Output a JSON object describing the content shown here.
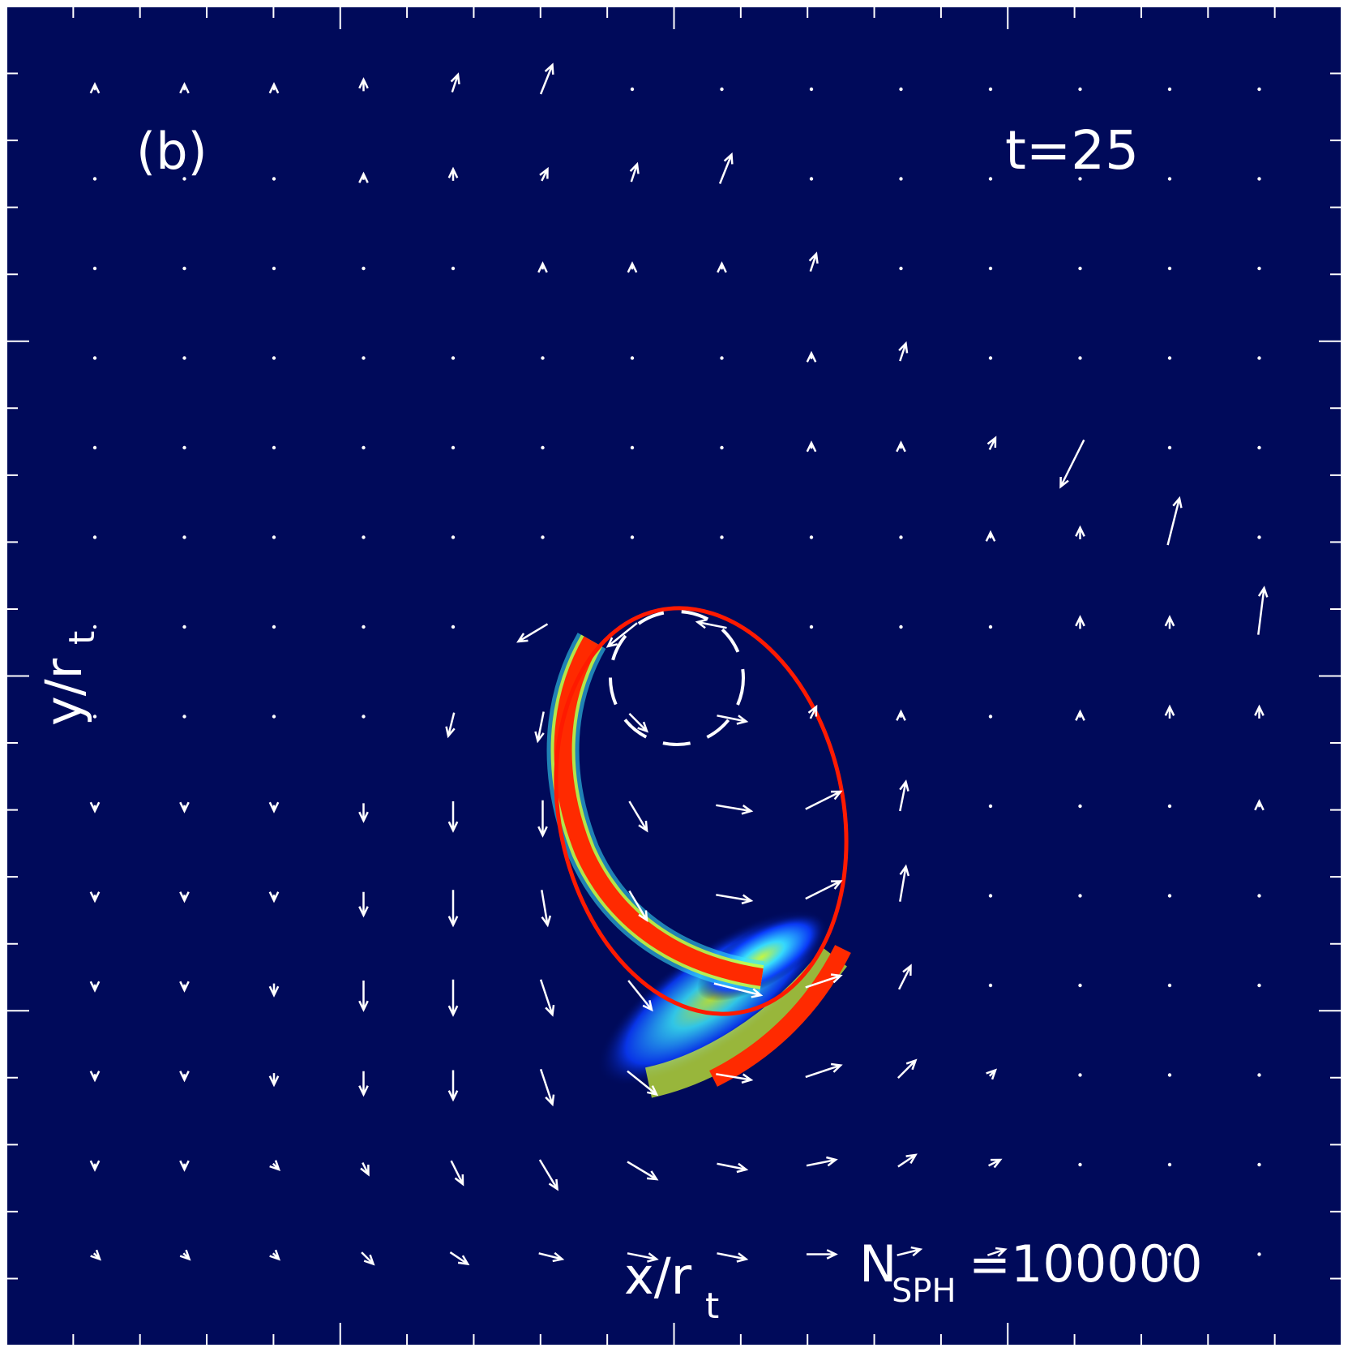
{
  "chart_data": {
    "type": "heatmap",
    "panel_label": "(b)",
    "time_label": "t=25",
    "xlabel": "x/r",
    "xlabel_sub": "t",
    "ylabel": "y/r",
    "ylabel_sub": "t",
    "nsph_main": "N",
    "nsph_sub": "SPH",
    "nsph_value": "=100000",
    "colormap": [
      "#000a5a",
      "#0a3cff",
      "#39e6ff",
      "#d8ff2e",
      "#ff2a00",
      "#c80000"
    ],
    "background_color": "#000a5a",
    "ring_color": "#ff1a00",
    "arrow_color": "#ffffff",
    "vector_field": {
      "rows": 14,
      "cols": 14,
      "description_free": true,
      "u": [
        [
          0,
          0,
          0,
          0,
          0.1,
          0.2,
          0,
          0,
          0,
          0,
          0,
          0,
          0,
          0
        ],
        [
          0,
          0,
          0,
          0,
          0,
          0.1,
          0.1,
          0.2,
          0,
          0,
          0,
          0,
          0,
          0
        ],
        [
          0,
          0,
          0,
          0,
          0,
          0,
          0,
          0,
          0.1,
          0,
          0,
          0,
          0,
          0
        ],
        [
          0,
          0,
          0,
          0,
          0,
          0,
          0,
          0,
          0,
          0.1,
          0,
          0,
          0,
          0
        ],
        [
          0,
          0,
          0,
          0,
          0,
          0,
          0,
          0,
          0,
          0,
          0.1,
          -0.4,
          0,
          0
        ],
        [
          0,
          0,
          0,
          0,
          0,
          0,
          0,
          0,
          0,
          0,
          0,
          0,
          0.2,
          0
        ],
        [
          0,
          0,
          0,
          0,
          0,
          -0.5,
          -0.5,
          -0.5,
          0,
          0,
          0,
          0,
          0,
          0.1
        ],
        [
          0,
          0,
          0,
          0,
          -0.1,
          -0.1,
          0.3,
          0.5,
          0.1,
          0,
          0,
          0,
          0,
          0
        ],
        [
          0,
          0,
          0,
          0,
          0,
          0,
          0.3,
          0.6,
          0.6,
          0.1,
          0,
          0,
          0,
          0
        ],
        [
          0,
          0,
          0,
          0,
          0,
          0.1,
          0.3,
          0.6,
          0.6,
          0.1,
          0,
          0,
          0,
          0
        ],
        [
          0,
          0,
          0,
          0,
          0,
          0.2,
          0.4,
          0.8,
          0.6,
          0.2,
          0,
          0,
          0,
          0
        ],
        [
          0,
          0,
          0,
          0,
          0,
          0.2,
          0.5,
          0.6,
          0.6,
          0.3,
          0.1,
          0,
          0,
          0
        ],
        [
          0,
          0,
          0.1,
          0.1,
          0.2,
          0.3,
          0.5,
          0.5,
          0.5,
          0.3,
          0.2,
          0,
          0,
          0
        ],
        [
          0.1,
          0.1,
          0.1,
          0.2,
          0.3,
          0.4,
          0.5,
          0.5,
          0.5,
          0.4,
          0.3,
          0,
          0,
          0
        ]
      ],
      "v": [
        [
          0.1,
          0.1,
          0.1,
          0.2,
          0.3,
          0.5,
          0,
          0,
          0,
          0,
          0,
          0,
          0,
          0
        ],
        [
          0,
          0,
          0,
          0.1,
          0.2,
          0.2,
          0.3,
          0.5,
          0,
          0,
          0,
          0,
          0,
          0
        ],
        [
          0,
          0,
          0,
          0,
          0,
          0.1,
          0.1,
          0.1,
          0.3,
          0,
          0,
          0,
          0,
          0
        ],
        [
          0,
          0,
          0,
          0,
          0,
          0,
          0,
          0,
          0.1,
          0.3,
          0,
          0,
          0,
          0
        ],
        [
          0,
          0,
          0,
          0,
          0,
          0,
          0,
          0,
          0.1,
          0.1,
          0.2,
          -0.8,
          0,
          0
        ],
        [
          0,
          0,
          0,
          0,
          0,
          0,
          0,
          0,
          0,
          0,
          0.1,
          0.2,
          0.8,
          0
        ],
        [
          0,
          0,
          0,
          0,
          0,
          -0.3,
          -0.4,
          0.1,
          0,
          0,
          0,
          0.2,
          0.2,
          0.8
        ],
        [
          0,
          0,
          0,
          0,
          -0.4,
          -0.5,
          -0.3,
          -0.1,
          0.2,
          0.1,
          0,
          0.1,
          0.2,
          0.2
        ],
        [
          -0.1,
          -0.1,
          -0.1,
          -0.3,
          -0.5,
          -0.6,
          -0.5,
          -0.1,
          0.3,
          0.5,
          0,
          0,
          0,
          0.1
        ],
        [
          -0.1,
          -0.1,
          -0.1,
          -0.4,
          -0.6,
          -0.6,
          -0.5,
          -0.1,
          0.3,
          0.6,
          0,
          0,
          0,
          0
        ],
        [
          -0.1,
          -0.1,
          -0.2,
          -0.5,
          -0.6,
          -0.6,
          -0.5,
          -0.2,
          0.2,
          0.4,
          0,
          0,
          0,
          0
        ],
        [
          -0.1,
          -0.1,
          -0.2,
          -0.4,
          -0.5,
          -0.6,
          -0.4,
          -0.1,
          0.2,
          0.3,
          0.1,
          0,
          0,
          0
        ],
        [
          -0.1,
          -0.1,
          -0.1,
          -0.2,
          -0.4,
          -0.5,
          -0.3,
          -0.1,
          0.1,
          0.2,
          0.1,
          0,
          0,
          0
        ],
        [
          -0.1,
          -0.1,
          -0.1,
          -0.2,
          -0.2,
          -0.1,
          -0.1,
          -0.1,
          0,
          0.1,
          0.1,
          0,
          0,
          0
        ]
      ]
    }
  }
}
